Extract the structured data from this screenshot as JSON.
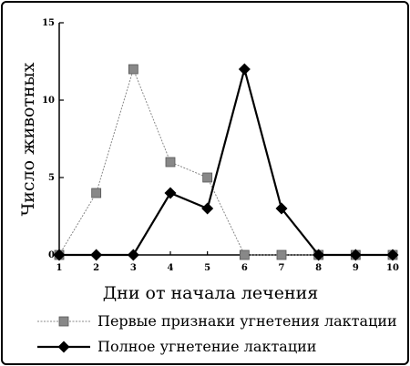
{
  "chart_data": {
    "type": "line",
    "title": "",
    "xlabel": "Дни от начала лечения",
    "ylabel": "Число животных",
    "x": [
      1,
      2,
      3,
      4,
      5,
      6,
      7,
      8,
      9,
      10
    ],
    "xlim": [
      1,
      10
    ],
    "ylim": [
      0,
      15
    ],
    "xticks": [
      "1",
      "2",
      "3",
      "4",
      "5",
      "6",
      "7",
      "8",
      "9",
      "10"
    ],
    "yticks": [
      "0",
      "5",
      "10",
      "15"
    ],
    "grid": false,
    "legend_position": "bottom",
    "series": [
      {
        "name": "Первые признаки угнетения лактации",
        "values": [
          0,
          4,
          12,
          6,
          5,
          0,
          0,
          0,
          0,
          0
        ],
        "marker": "square",
        "color": "#888888",
        "line_style": "dashed"
      },
      {
        "name": "Полное угнетение лактации",
        "values": [
          0,
          0,
          0,
          4,
          3,
          12,
          3,
          0,
          0,
          0
        ],
        "marker": "diamond",
        "color": "#000000",
        "line_style": "solid"
      }
    ]
  }
}
